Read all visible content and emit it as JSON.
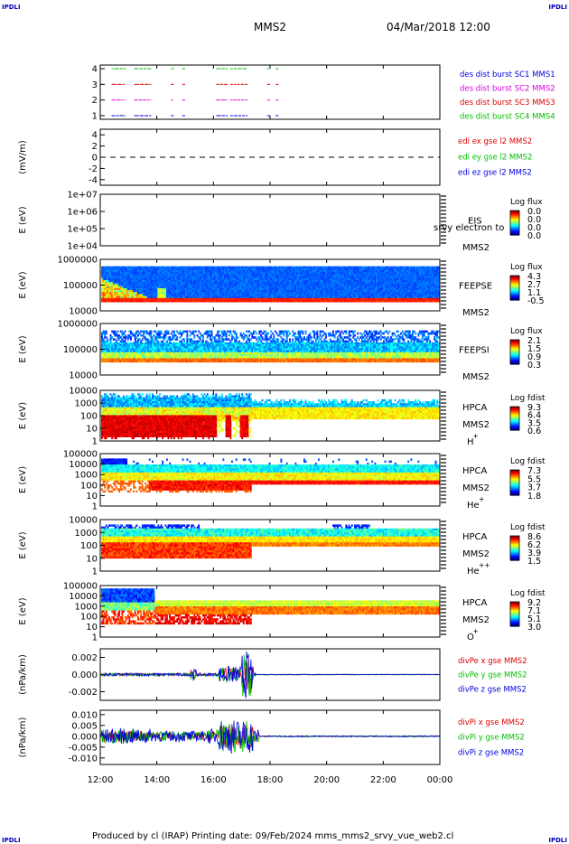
{
  "header": {
    "corner_left": "IPDLI",
    "corner_right": "IPDLI",
    "mission": "MMS2",
    "datetime": "04/Mar/2018 12:00"
  },
  "footer": {
    "credit": "Produced by cl (IRAP)   Printing date: 09/Feb/2024   mms_mms2_srvy_vue_web2.cl",
    "corner_left": "IPDLI",
    "corner_right": "IPDLI"
  },
  "colors": {
    "red": "#e00000",
    "green": "#00c000",
    "blue": "#0000e0",
    "magenta": "#e000e0"
  },
  "chart_data": {
    "type": "multi-panel time series",
    "x_ticks": [
      "12:00",
      "14:00",
      "16:00",
      "18:00",
      "20:00",
      "22:00",
      "00:00"
    ],
    "panels": [
      {
        "id": "burst",
        "type": "timeline",
        "y_ticks": [
          "4",
          "3",
          "2",
          "1"
        ],
        "legend": [
          {
            "text": "des dist burst SC1 MMS1",
            "color": "#0000e0"
          },
          {
            "text": "des dist burst SC2 MMS2",
            "color": "#e000e0"
          },
          {
            "text": "des dist burst SC3 MMS3",
            "color": "#e00000"
          },
          {
            "text": "des dist burst SC4 MMS4",
            "color": "#00c000"
          }
        ],
        "bursts_hours": [
          [
            12.4,
            12.9
          ],
          [
            13.2,
            13.8
          ],
          [
            14.5,
            14.6
          ],
          [
            14.9,
            15.0
          ],
          [
            16.1,
            16.5
          ],
          [
            16.6,
            17.2
          ],
          [
            17.9,
            18.0
          ],
          [
            18.2,
            18.3
          ]
        ]
      },
      {
        "id": "edi",
        "type": "line",
        "ylabel": "(mV/m)",
        "y_ticks": [
          "4",
          "2",
          "0",
          "-2",
          "-4"
        ],
        "ylim": [
          -5,
          5
        ],
        "legend": [
          {
            "text": "edi ex gse l2 MMS2",
            "color": "#e00000"
          },
          {
            "text": "edi ey gse l2 MMS2",
            "color": "#00c000"
          },
          {
            "text": "edi ez gse l2 MMS2",
            "color": "#0000e0"
          }
        ],
        "zero_line": 0
      },
      {
        "id": "eis",
        "type": "heatmap",
        "ylabel": "E (eV)",
        "y_ticks": [
          "1e+07",
          "1e+06",
          "1e+05",
          "1e+04"
        ],
        "instrument": "EIS",
        "spacecraft": "MMS2",
        "overlap_text": "srvy electron to",
        "colorbar_title": "Log flux",
        "colorbar_ticks": [
          "0.0",
          "0.0",
          "0.0",
          "0.0"
        ]
      },
      {
        "id": "feepse",
        "type": "heatmap",
        "ylabel": "E (eV)",
        "y_ticks": [
          "1000000",
          "100000",
          "10000"
        ],
        "instrument": "FEEPSE",
        "spacecraft": "MMS2",
        "colorbar_title": "Log flux",
        "colorbar_ticks": [
          "4.3",
          "2.7",
          "1.1",
          "-0.5"
        ]
      },
      {
        "id": "feepsi",
        "type": "heatmap",
        "ylabel": "E (eV)",
        "y_ticks": [
          "1000000",
          "100000",
          "10000"
        ],
        "instrument": "FEEPSI",
        "spacecraft": "MMS2",
        "colorbar_title": "Log flux",
        "colorbar_ticks": [
          "2.1",
          "1.5",
          "0.9",
          "0.3"
        ]
      },
      {
        "id": "hpca_h",
        "type": "heatmap",
        "ylabel": "E (eV)",
        "y_ticks": [
          "10000",
          "1000",
          "100",
          "10",
          "1"
        ],
        "instrument": "HPCA",
        "spacecraft": "MMS2",
        "species": "H",
        "species_sup": "+",
        "colorbar_title": "Log fdist",
        "colorbar_ticks": [
          "9.3",
          "6.4",
          "3.5",
          "0.6"
        ]
      },
      {
        "id": "hpca_he",
        "type": "heatmap",
        "ylabel": "E (eV)",
        "y_ticks": [
          "100000",
          "10000",
          "1000",
          "100",
          "10",
          "1"
        ],
        "instrument": "HPCA",
        "spacecraft": "MMS2",
        "species": "He",
        "species_sup": "+",
        "colorbar_title": "Log fdist",
        "colorbar_ticks": [
          "7.3",
          "5.5",
          "3.7",
          "1.8"
        ]
      },
      {
        "id": "hpca_hepp",
        "type": "heatmap",
        "ylabel": "E (eV)",
        "y_ticks": [
          "10000",
          "1000",
          "100",
          "10",
          "1"
        ],
        "instrument": "HPCA",
        "spacecraft": "MMS2",
        "species": "He",
        "species_sup": "++",
        "colorbar_title": "Log fdist",
        "colorbar_ticks": [
          "8.6",
          "6.2",
          "3.9",
          "1.5"
        ]
      },
      {
        "id": "hpca_o",
        "type": "heatmap",
        "ylabel": "E (eV)",
        "y_ticks": [
          "100000",
          "10000",
          "1000",
          "100",
          "10",
          "1"
        ],
        "instrument": "HPCA",
        "spacecraft": "MMS2",
        "species": "O",
        "species_sup": "+",
        "colorbar_title": "Log fdist",
        "colorbar_ticks": [
          "9.2",
          "7.1",
          "5.1",
          "3.0"
        ]
      },
      {
        "id": "divpe",
        "type": "line",
        "ylabel": "(nPa/km)",
        "y_ticks": [
          "0.002",
          "0.000",
          "-0.002"
        ],
        "ylim": [
          -0.003,
          0.003
        ],
        "legend": [
          {
            "text": "divPe x gse MMS2",
            "color": "#e00000"
          },
          {
            "text": "divPe y gse MMS2",
            "color": "#00c000"
          },
          {
            "text": "divPe z gse MMS2",
            "color": "#0000e0"
          }
        ]
      },
      {
        "id": "divpi",
        "type": "line",
        "ylabel": "(nPa/km)",
        "y_ticks": [
          "0.010",
          "0.005",
          "0.000",
          "-0.005",
          "-0.010"
        ],
        "ylim": [
          -0.013,
          0.012
        ],
        "legend": [
          {
            "text": "divPi x gse MMS2",
            "color": "#e00000"
          },
          {
            "text": "divPi y gse MMS2",
            "color": "#00c000"
          },
          {
            "text": "divPi z gse MMS2",
            "color": "#0000e0"
          }
        ]
      }
    ]
  }
}
